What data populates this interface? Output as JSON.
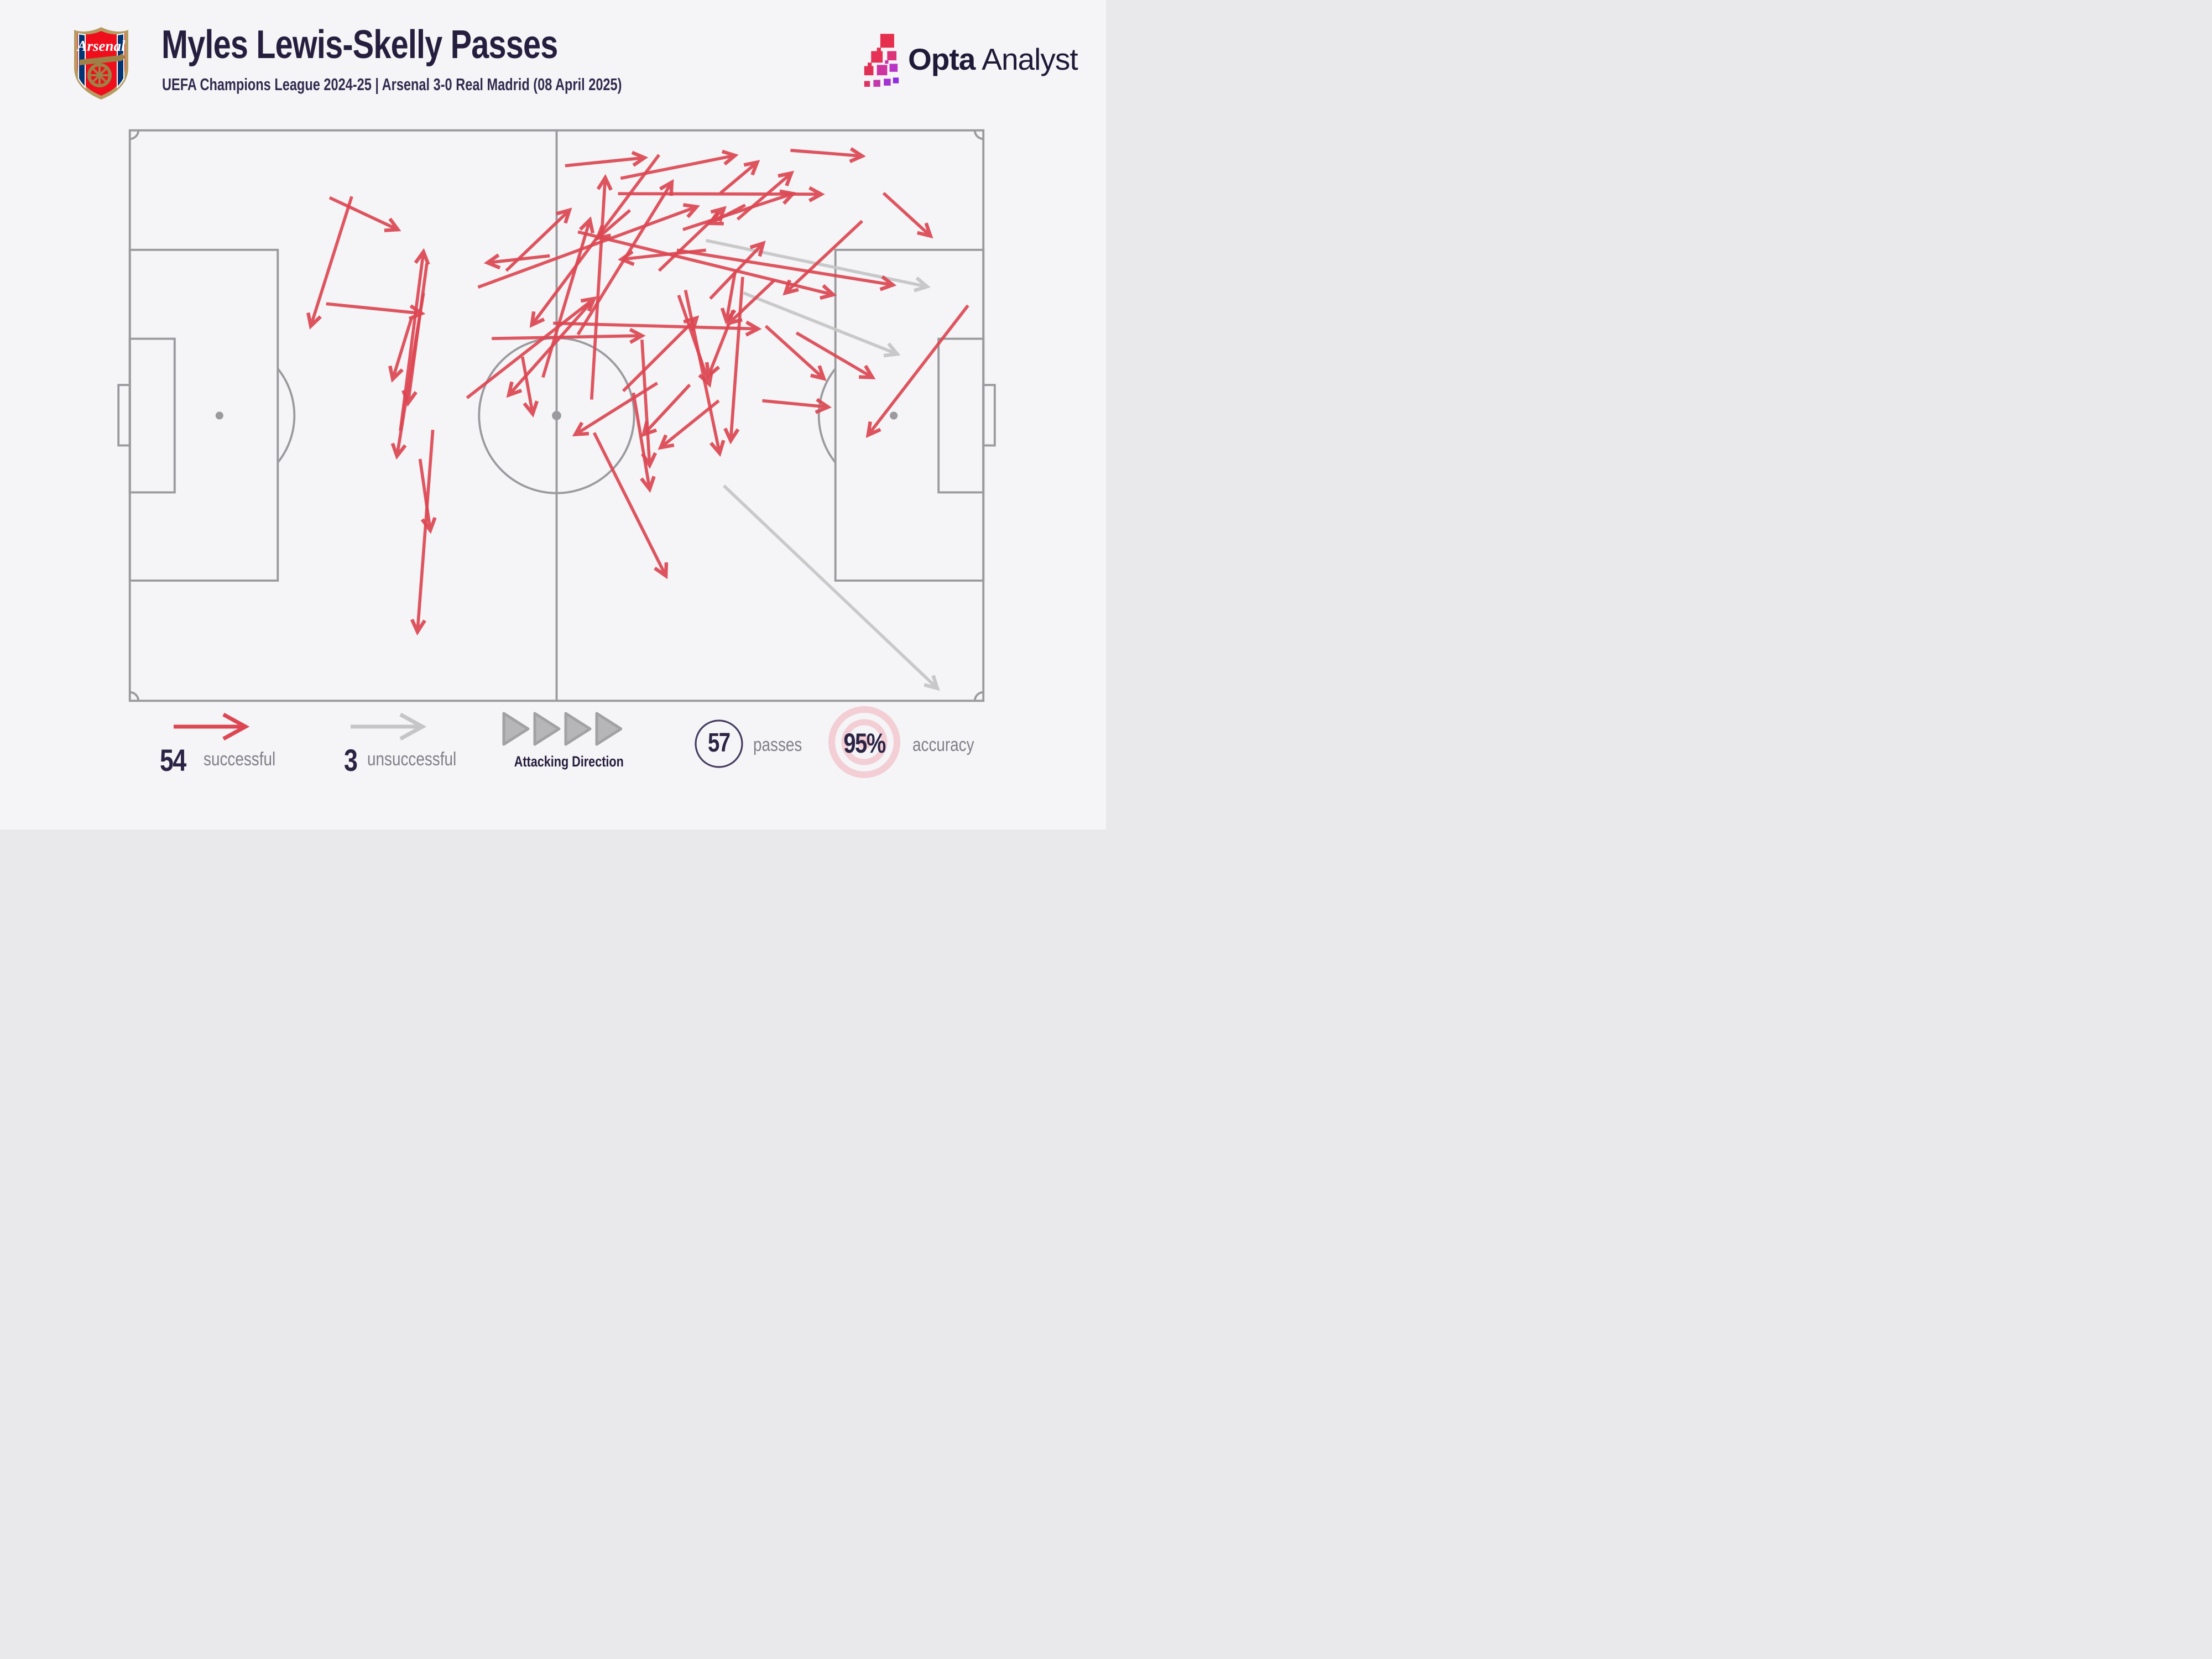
{
  "header": {
    "club_name": "Arsenal",
    "title": "Myles Lewis-Skelly Passes",
    "subtitle": "UEFA Champions League 2024-25 | Arsenal 3-0 Real Madrid (08 April 2025)"
  },
  "brand": {
    "bold": "Opta",
    "light": "Analyst"
  },
  "legend": {
    "successful_value": "54",
    "successful_label": "successful",
    "unsuccessful_value": "3",
    "unsuccessful_label": "unsuccessful",
    "attacking_direction_label": "Attacking Direction",
    "passes_value": "57",
    "passes_label": "passes",
    "accuracy_value": "95%",
    "accuracy_label": "accuracy"
  },
  "colors": {
    "successful": "#dc4753",
    "unsuccessful": "#c5c4c6",
    "pitch_line": "#9b9b9f",
    "background": "#f5f4f6",
    "ink": "#2c2444",
    "muted": "#80808a",
    "target_ring": "#f3ced5",
    "triangle": "#b6b6b8"
  },
  "chart_data": {
    "type": "pass_map",
    "title": "Myles Lewis-Skelly Passes",
    "player": "Myles Lewis-Skelly",
    "competition": "UEFA Champions League 2024-25",
    "match": "Arsenal 3-0 Real Madrid",
    "date": "08 April 2025",
    "attacking_direction": "left-to-right",
    "totals": {
      "passes": 57,
      "successful": 54,
      "unsuccessful": 3,
      "accuracy_pct": 95
    },
    "coordinates": "percent of pitch; x:0=own goal line(left),100=opposition goal line; y:0=top touchline; arrowhead at x2,y2",
    "successful_passes": [
      [
        23.4,
        11.8,
        31.4,
        17.4
      ],
      [
        26.0,
        11.6,
        21.2,
        34.3
      ],
      [
        23.0,
        30.4,
        34.2,
        32.1
      ],
      [
        34.8,
        23.3,
        32.6,
        47.8
      ],
      [
        31.7,
        52.7,
        34.4,
        21.3
      ],
      [
        33.0,
        32.9,
        30.8,
        43.6
      ],
      [
        34.4,
        28.5,
        31.3,
        57.1
      ],
      [
        34.0,
        57.6,
        35.2,
        70.1
      ],
      [
        35.5,
        52.5,
        33.7,
        87.9
      ],
      [
        49.2,
        22.0,
        41.9,
        23.2
      ],
      [
        54.1,
        47.2,
        55.7,
        8.3
      ],
      [
        48.4,
        43.3,
        53.9,
        15.7
      ],
      [
        42.4,
        36.5,
        60.0,
        36.0
      ],
      [
        39.5,
        46.9,
        54.4,
        29.5
      ],
      [
        53.9,
        30.4,
        44.4,
        46.4
      ],
      [
        62.0,
        4.3,
        47.1,
        34.1
      ],
      [
        52.5,
        35.8,
        63.5,
        9.1
      ],
      [
        40.8,
        27.5,
        66.4,
        13.4
      ],
      [
        57.2,
        11.1,
        81.0,
        11.2
      ],
      [
        52.5,
        17.8,
        82.4,
        28.8
      ],
      [
        57.8,
        45.7,
        66.4,
        32.9
      ],
      [
        61.8,
        44.3,
        52.2,
        53.3
      ],
      [
        65.6,
        44.6,
        60.2,
        53.3
      ],
      [
        54.4,
        53.0,
        62.8,
        78.1
      ],
      [
        60.0,
        36.7,
        60.9,
        58.7
      ],
      [
        46.0,
        39.7,
        47.2,
        49.7
      ],
      [
        59.0,
        46.0,
        60.9,
        62.9
      ],
      [
        64.3,
        28.9,
        67.9,
        44.5
      ],
      [
        65.1,
        28.0,
        69.1,
        56.6
      ],
      [
        71.8,
        25.7,
        70.4,
        54.4
      ],
      [
        70.9,
        24.9,
        69.9,
        33.4
      ],
      [
        75.5,
        26.3,
        70.2,
        33.8
      ],
      [
        74.1,
        47.4,
        81.8,
        48.5
      ],
      [
        78.1,
        35.5,
        87.0,
        43.3
      ],
      [
        98.2,
        30.7,
        86.5,
        53.4
      ],
      [
        69.2,
        11.0,
        73.5,
        5.6
      ],
      [
        71.2,
        15.6,
        77.5,
        7.5
      ],
      [
        72.1,
        13.1,
        68.0,
        16.3
      ],
      [
        70.2,
        33.9,
        67.8,
        43.0
      ],
      [
        67.5,
        21.0,
        57.6,
        22.6
      ],
      [
        64.8,
        17.4,
        77.7,
        11.1
      ],
      [
        57.5,
        8.4,
        70.9,
        4.4
      ],
      [
        62.0,
        24.6,
        69.6,
        13.7
      ],
      [
        68.0,
        29.5,
        74.2,
        19.8
      ],
      [
        58.6,
        14.0,
        54.8,
        18.9
      ],
      [
        85.8,
        15.9,
        76.8,
        28.5
      ],
      [
        88.3,
        11.0,
        93.8,
        18.5
      ],
      [
        77.4,
        3.5,
        85.8,
        4.5
      ],
      [
        74.5,
        34.3,
        81.3,
        43.5
      ],
      [
        51.0,
        6.2,
        60.3,
        4.8
      ],
      [
        44.1,
        24.6,
        51.5,
        14.0
      ],
      [
        69.0,
        47.4,
        62.2,
        55.6
      ],
      [
        49.6,
        33.8,
        73.6,
        34.8
      ],
      [
        64.1,
        21.0,
        89.4,
        27.1
      ]
    ],
    "unsuccessful_passes": [
      [
        67.5,
        19.3,
        93.4,
        27.4
      ],
      [
        71.9,
        28.5,
        89.9,
        39.2
      ],
      [
        69.6,
        62.3,
        94.6,
        97.8
      ]
    ]
  }
}
